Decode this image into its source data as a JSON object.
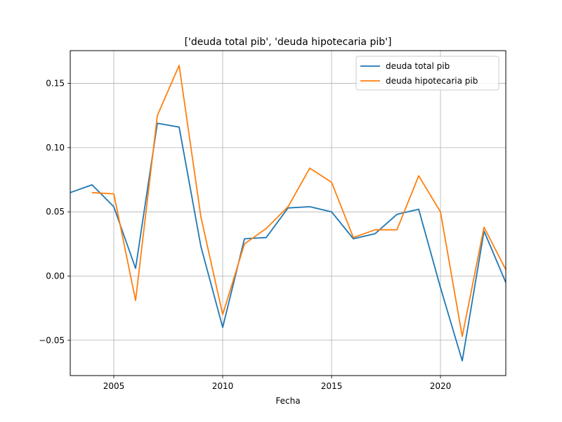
{
  "chart_data": {
    "type": "line",
    "title": "['deuda total pib', 'deuda hipotecaria pib']",
    "xlabel": "Fecha",
    "ylabel": "",
    "xlim": [
      2003,
      2023
    ],
    "ylim": [
      -0.0775,
      0.1755
    ],
    "x_ticks": [
      2005,
      2010,
      2015,
      2020
    ],
    "y_ticks": [
      -0.05,
      0.0,
      0.05,
      0.1,
      0.15
    ],
    "y_tick_labels": [
      "−0.05",
      "0.00",
      "0.05",
      "0.10",
      "0.15"
    ],
    "grid": true,
    "legend_position": "top-right",
    "series": [
      {
        "name": "deuda total pib",
        "color": "#1f77b4",
        "x": [
          2003,
          2004,
          2005,
          2006,
          2007,
          2008,
          2009,
          2010,
          2011,
          2012,
          2013,
          2014,
          2015,
          2016,
          2017,
          2018,
          2019,
          2020,
          2021,
          2022,
          2023
        ],
        "values": [
          0.065,
          0.071,
          0.054,
          0.006,
          0.119,
          0.116,
          0.023,
          -0.04,
          0.029,
          0.03,
          0.053,
          0.054,
          0.05,
          0.029,
          0.033,
          0.048,
          0.052,
          -0.009,
          -0.066,
          0.035,
          -0.005
        ]
      },
      {
        "name": "deuda hipotecaria pib",
        "color": "#ff7f0e",
        "x": [
          2004,
          2005,
          2006,
          2007,
          2008,
          2009,
          2010,
          2011,
          2012,
          2013,
          2014,
          2015,
          2016,
          2017,
          2018,
          2019,
          2020,
          2021,
          2022,
          2023
        ],
        "values": [
          0.065,
          0.064,
          -0.019,
          0.125,
          0.164,
          0.046,
          -0.03,
          0.025,
          0.037,
          0.054,
          0.084,
          0.073,
          0.03,
          0.036,
          0.036,
          0.078,
          0.05,
          -0.047,
          0.038,
          0.005
        ]
      }
    ]
  }
}
